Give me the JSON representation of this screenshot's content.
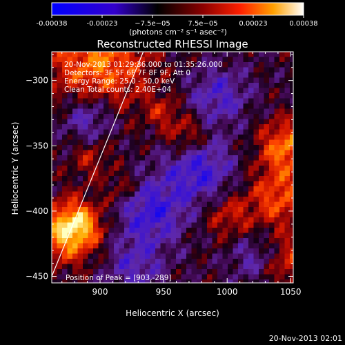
{
  "colorbar": {
    "tick_labels": [
      "-0.00038",
      "-0.00023",
      "−7.5e−05",
      "7.5e−05",
      "0.00023",
      "0.00038"
    ],
    "unit_label": "(photons cm⁻² s⁻¹ asec⁻²)"
  },
  "chart_data": {
    "type": "heatmap",
    "title": "Reconstructed RHESSI Image",
    "xlabel": "Heliocentric X (arcsec)",
    "ylabel": "Heliocentric Y (arcsec)",
    "xlim": [
      862,
      1052
    ],
    "ylim": [
      -455,
      -278
    ],
    "x_ticks": [
      900,
      950,
      1000,
      1050
    ],
    "y_ticks": [
      -300,
      -350,
      -400,
      -450
    ],
    "x_tick_labels": [
      "900",
      "950",
      "1000",
      "1050"
    ],
    "y_tick_labels": [
      "−300",
      "−350",
      "−400",
      "−450"
    ],
    "color_range": [
      -0.00038,
      0.00038
    ],
    "annotations": [
      "20-Nov-2013 01:29:36.000 to 01:35:26.000",
      "Detectors: 3F 5F 6F 7F 8F 9F, Att 0",
      "Energy Range: 25.0 - 50.0 keV",
      "Clean    Total counts: 2.40E+04"
    ],
    "peak_label": "Position of Peak = [903,-289]",
    "peak_position": [
      903,
      -289
    ],
    "limb_line": [
      [
        862,
        -450
      ],
      [
        934,
        -278
      ]
    ]
  },
  "footer": {
    "timestamp": "20-Nov-2013 02:01"
  }
}
